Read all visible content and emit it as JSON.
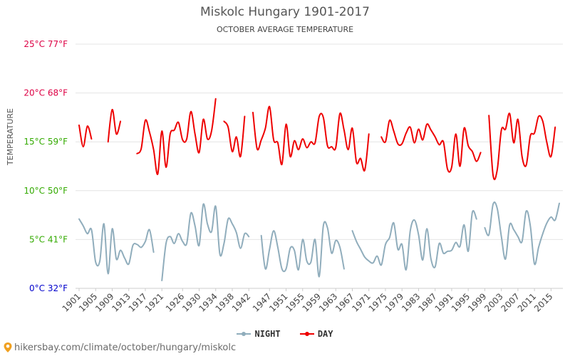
{
  "chart_data": {
    "type": "line",
    "title": "Miskolc Hungary 1901-2017",
    "subtitle": "OCTOBER AVERAGE TEMPERATURE",
    "ylabel": "TEMPERATURE",
    "ylim": [
      0,
      25
    ],
    "y_ticks": [
      {
        "value": 0,
        "label": "0°C 32°F",
        "color": "#0000cc"
      },
      {
        "value": 5,
        "label": "5°C 41°F",
        "color": "#33aa00"
      },
      {
        "value": 10,
        "label": "10°C 50°F",
        "color": "#33aa00"
      },
      {
        "value": 15,
        "label": "15°C 59°F",
        "color": "#33aa00"
      },
      {
        "value": 20,
        "label": "20°C 68°F",
        "color": "#dd0044"
      },
      {
        "value": 25,
        "label": "25°C 77°F",
        "color": "#dd0044"
      }
    ],
    "x_range": [
      1901,
      2017
    ],
    "x_tick_labels": [
      "1901",
      "1905",
      "1909",
      "1913",
      "1917",
      "1921",
      "1926",
      "1930",
      "1934",
      "1938",
      "1942",
      "1947",
      "1951",
      "1955",
      "1959",
      "1963",
      "1967",
      "1971",
      "1975",
      "1979",
      "1983",
      "1987",
      "1991",
      "1995",
      "1999",
      "2003",
      "2007",
      "2011",
      "2015"
    ],
    "series": [
      {
        "name": "DAY",
        "color": "#ee0000",
        "segments": [
          {
            "start": 1901,
            "values": [
              16.7,
              14.5,
              16.6,
              15.3
            ]
          },
          {
            "start": 1908,
            "values": [
              15.0,
              18.3,
              15.8,
              17.1
            ]
          },
          {
            "start": 1915,
            "values": [
              13.8,
              14.3,
              17.2,
              16.0,
              14.2,
              11.7,
              16.1,
              12.4,
              15.8,
              16.2,
              17.0,
              15.2,
              15.3,
              18.1,
              15.8,
              13.9,
              17.3,
              15.3,
              16.1,
              19.4
            ]
          },
          {
            "start": 1936,
            "values": [
              17.1,
              16.5,
              14.0,
              15.5,
              13.5,
              17.6
            ]
          },
          {
            "start": 1943,
            "values": [
              18.0,
              14.3,
              15.2,
              16.4,
              18.6,
              15.2,
              14.9,
              12.7,
              16.8,
              13.5,
              15.1,
              14.2,
              15.3,
              14.4,
              15.0,
              14.9,
              17.6,
              17.5,
              14.6,
              14.5,
              14.4,
              17.9,
              16.2,
              14.2,
              16.4,
              12.9,
              13.3,
              12.1,
              15.8
            ]
          },
          {
            "start": 1974,
            "values": [
              15.5,
              15.0,
              17.2,
              16.1,
              14.8,
              14.8,
              15.9,
              16.5,
              14.9,
              16.3,
              15.2,
              16.8,
              16.2,
              15.5,
              14.7,
              15.0,
              12.2,
              12.4,
              15.8,
              12.5,
              16.4,
              14.6,
              14.0,
              13.0,
              13.9
            ]
          },
          {
            "start": 2000,
            "values": [
              17.7,
              11.6,
              12.1,
              16.2,
              16.3,
              17.9,
              14.9,
              17.3,
              13.5,
              12.6,
              15.6,
              15.9,
              17.6,
              17.1,
              14.9,
              13.5,
              16.5
            ]
          }
        ]
      },
      {
        "name": "NIGHT",
        "color": "#90adbc",
        "segments": [
          {
            "start": 1901,
            "values": [
              7.1,
              6.4,
              5.6,
              6.0,
              2.7,
              2.8,
              6.6,
              1.5,
              6.1,
              3.0,
              3.9,
              3.1,
              2.5,
              4.4,
              4.5,
              4.2,
              4.8,
              6.0,
              3.7
            ]
          },
          {
            "start": 1921,
            "values": [
              0.8,
              4.6,
              5.3,
              4.6,
              5.6,
              4.8,
              4.6,
              7.7,
              6.4,
              4.4,
              8.6,
              6.6,
              5.8,
              8.4,
              3.5,
              4.6,
              7.1,
              6.6,
              5.7,
              4.1,
              5.6,
              5.3
            ]
          },
          {
            "start": 1945,
            "values": [
              5.4,
              2.0,
              4.0,
              5.9,
              4.2,
              2.0,
              2.0,
              4.1,
              3.9,
              1.9,
              5.0,
              2.8,
              2.7,
              5.0,
              1.2,
              6.4,
              6.2,
              3.6,
              4.9,
              4.2,
              2.0
            ]
          },
          {
            "start": 1967,
            "values": [
              5.9,
              4.8,
              4.0,
              3.2,
              2.8,
              2.6,
              3.3,
              2.4,
              4.5,
              5.2,
              6.7,
              4.0,
              4.5,
              1.9,
              5.9,
              7.0,
              5.5,
              2.9,
              6.1,
              3.0,
              2.2,
              4.6,
              3.6,
              3.8,
              3.9,
              4.7,
              4.3,
              6.5,
              3.8,
              7.8,
              7.1
            ]
          },
          {
            "start": 1999,
            "values": [
              6.2,
              5.5,
              8.6,
              8.2,
              5.3,
              3.0,
              6.5,
              6.0,
              5.3,
              4.8,
              7.9,
              6.4,
              2.5,
              4.2,
              5.6,
              6.7,
              7.3,
              7.0,
              8.7
            ]
          }
        ]
      }
    ]
  },
  "legend": {
    "night_label": "NIGHT",
    "day_label": "DAY"
  },
  "footer": {
    "url_text": "hikersbay.com/climate/october/hungary/miskolc"
  },
  "colors": {
    "day": "#ee0000",
    "night": "#90adbc",
    "grid": "#e4e4e4"
  }
}
